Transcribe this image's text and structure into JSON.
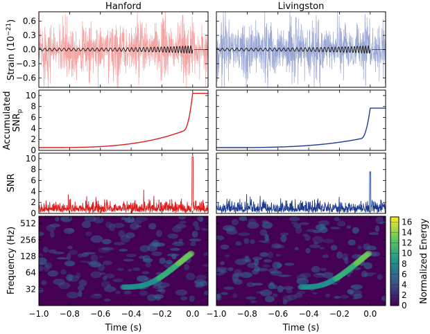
{
  "chart_data": {
    "type": "line",
    "detectors": [
      {
        "name": "Hanford",
        "color": "#dd1c1c",
        "light": "#f4a3a3",
        "accum_final": 10.4,
        "accum_knee": 4.2,
        "peak_snr": 10.3
      },
      {
        "name": "Livingston",
        "color": "#1d3a8f",
        "light": "#9ba8d4",
        "accum_final": 7.7,
        "accum_knee": 2.5,
        "peak_snr": 7.6
      }
    ],
    "xlim": [
      -1.0,
      0.1
    ],
    "xticks": [
      "−1.0",
      "−0.8",
      "−0.6",
      "−0.4",
      "−0.2",
      "0.0"
    ],
    "xlabel": "Time (s)",
    "rows": [
      {
        "id": "strain",
        "ylabel": "Strain (10",
        "ylabel_exp": "−21",
        "ylabel_end": ")",
        "ylim": [
          -0.8,
          0.8
        ],
        "yticks": [
          "0.6",
          "0.3",
          "0.0",
          "−0.3",
          "−0.6"
        ],
        "ytick_values": [
          0.6,
          0.3,
          0.0,
          -0.3,
          -0.6
        ]
      },
      {
        "id": "accum",
        "ylabel_line1": "Accumulated",
        "ylabel_line2": "SNR",
        "ylabel_sub": "p",
        "ylim": [
          0,
          11
        ],
        "yticks": [
          "10",
          "8",
          "6",
          "4",
          "2",
          "0"
        ],
        "ytick_values": [
          10,
          8,
          6,
          4,
          2,
          0
        ]
      },
      {
        "id": "snr",
        "ylabel": "SNR",
        "ylim": [
          0,
          11
        ],
        "yticks": [
          "10",
          "8",
          "6",
          "4",
          "2",
          "0"
        ],
        "ytick_values": [
          10,
          8,
          6,
          4,
          2,
          0
        ]
      },
      {
        "id": "spec",
        "ylabel": "Frequency (Hz)",
        "scale": "log2",
        "ylim": [
          16,
          700
        ],
        "yticks": [
          "512",
          "256",
          "128",
          "64",
          "32"
        ],
        "ytick_values": [
          512,
          256,
          128,
          64,
          32
        ]
      }
    ],
    "colorbar": {
      "label": "Normalized Energy",
      "range": [
        0,
        17
      ],
      "ticks": [
        "16",
        "14",
        "12",
        "10",
        "8",
        "6",
        "4",
        "2",
        "0"
      ],
      "tick_values": [
        16,
        14,
        12,
        10,
        8,
        6,
        4,
        2,
        0
      ],
      "colormap": "viridis"
    }
  }
}
